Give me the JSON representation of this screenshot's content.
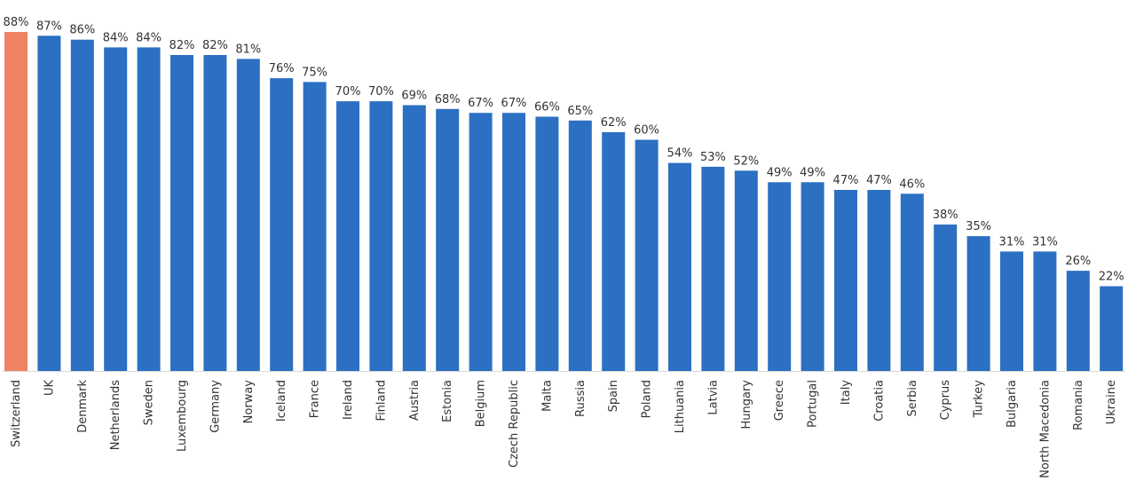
{
  "chart_data": {
    "type": "bar",
    "title": "",
    "xlabel": "",
    "ylabel": "",
    "ylim": [
      0,
      88
    ],
    "grid": false,
    "legend": "none",
    "value_format": "{v}%",
    "colors": {
      "default_bar": "#2b70c2",
      "highlight_bar": "#ee8262",
      "baseline": "#d9d9d9",
      "text": "#333333"
    },
    "highlight": [
      "Switzerland"
    ],
    "categories": [
      "Switzerland",
      "UK",
      "Denmark",
      "Netherlands",
      "Sweden",
      "Luxembourg",
      "Germany",
      "Norway",
      "Iceland",
      "France",
      "Ireland",
      "Finland",
      "Austria",
      "Estonia",
      "Belgium",
      "Czech Republic",
      "Malta",
      "Russia",
      "Spain",
      "Poland",
      "Lithuania",
      "Latvia",
      "Hungary",
      "Greece",
      "Portugal",
      "Italy",
      "Croatia",
      "Serbia",
      "Cyprus",
      "Turkey",
      "Bulgaria",
      "North Macedonia",
      "Romania",
      "Ukraine"
    ],
    "values": [
      88,
      87,
      86,
      84,
      84,
      82,
      82,
      81,
      76,
      75,
      70,
      70,
      69,
      68,
      67,
      67,
      66,
      65,
      62,
      60,
      54,
      53,
      52,
      49,
      49,
      47,
      47,
      46,
      38,
      35,
      31,
      31,
      26,
      22
    ]
  }
}
